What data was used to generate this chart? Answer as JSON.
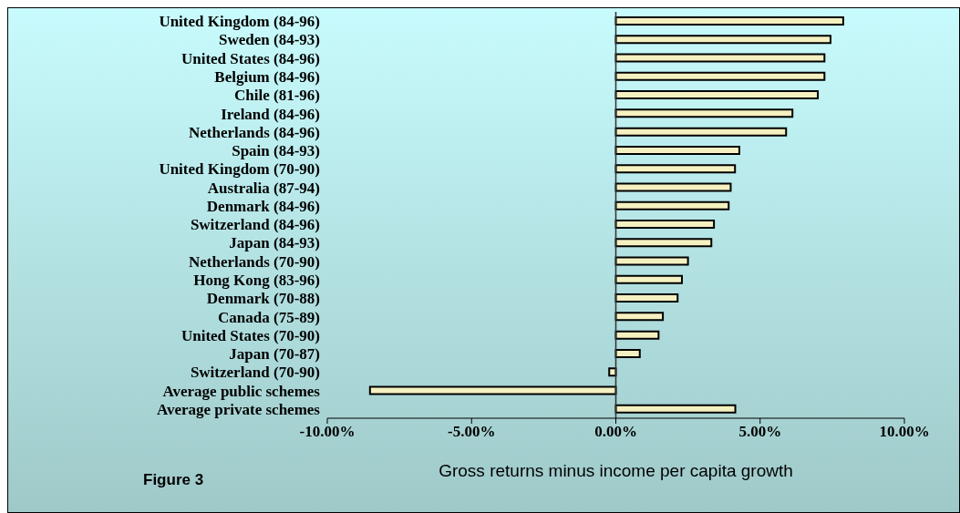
{
  "chart_data": {
    "type": "bar",
    "orientation": "horizontal",
    "categories": [
      "United Kingdom (84-96)",
      "Sweden (84-93)",
      "United States (84-96)",
      "Belgium (84-96)",
      "Chile (81-96)",
      "Ireland (84-96)",
      "Netherlands (84-96)",
      "Spain (84-93)",
      "United Kingdom (70-90)",
      "Australia (87-94)",
      "Denmark (84-96)",
      "Switzerland (84-96)",
      "Japan (84-93)",
      "Netherlands (70-90)",
      "Hong Kong (83-96)",
      "Denmark (70-88)",
      "Canada (75-89)",
      "United States (70-90)",
      "Japan (70-87)",
      "Switzerland (70-90)",
      "Average public schemes",
      "Average private schemes"
    ],
    "values": [
      7.88,
      7.44,
      7.23,
      7.23,
      7.0,
      6.12,
      5.9,
      4.28,
      4.13,
      3.98,
      3.91,
      3.4,
      3.31,
      2.5,
      2.29,
      2.14,
      1.63,
      1.48,
      0.83,
      -0.23,
      -8.52,
      4.14
    ],
    "color": "#f5f0c0",
    "xlim": [
      -10,
      10
    ],
    "xticks": [
      {
        "value": -10,
        "label": "-10.00%"
      },
      {
        "value": -5,
        "label": "-5.00%"
      },
      {
        "value": 0,
        "label": "0.00%"
      },
      {
        "value": 5,
        "label": "5.00%"
      },
      {
        "value": 10,
        "label": "10.00%"
      }
    ],
    "xlabel": "Gross returns minus income per capita growth",
    "annotations": [
      "Figure 3"
    ],
    "ref_lines": [
      {
        "axis": "x",
        "value": 0,
        "color": "#333333"
      }
    ],
    "legend": false
  }
}
